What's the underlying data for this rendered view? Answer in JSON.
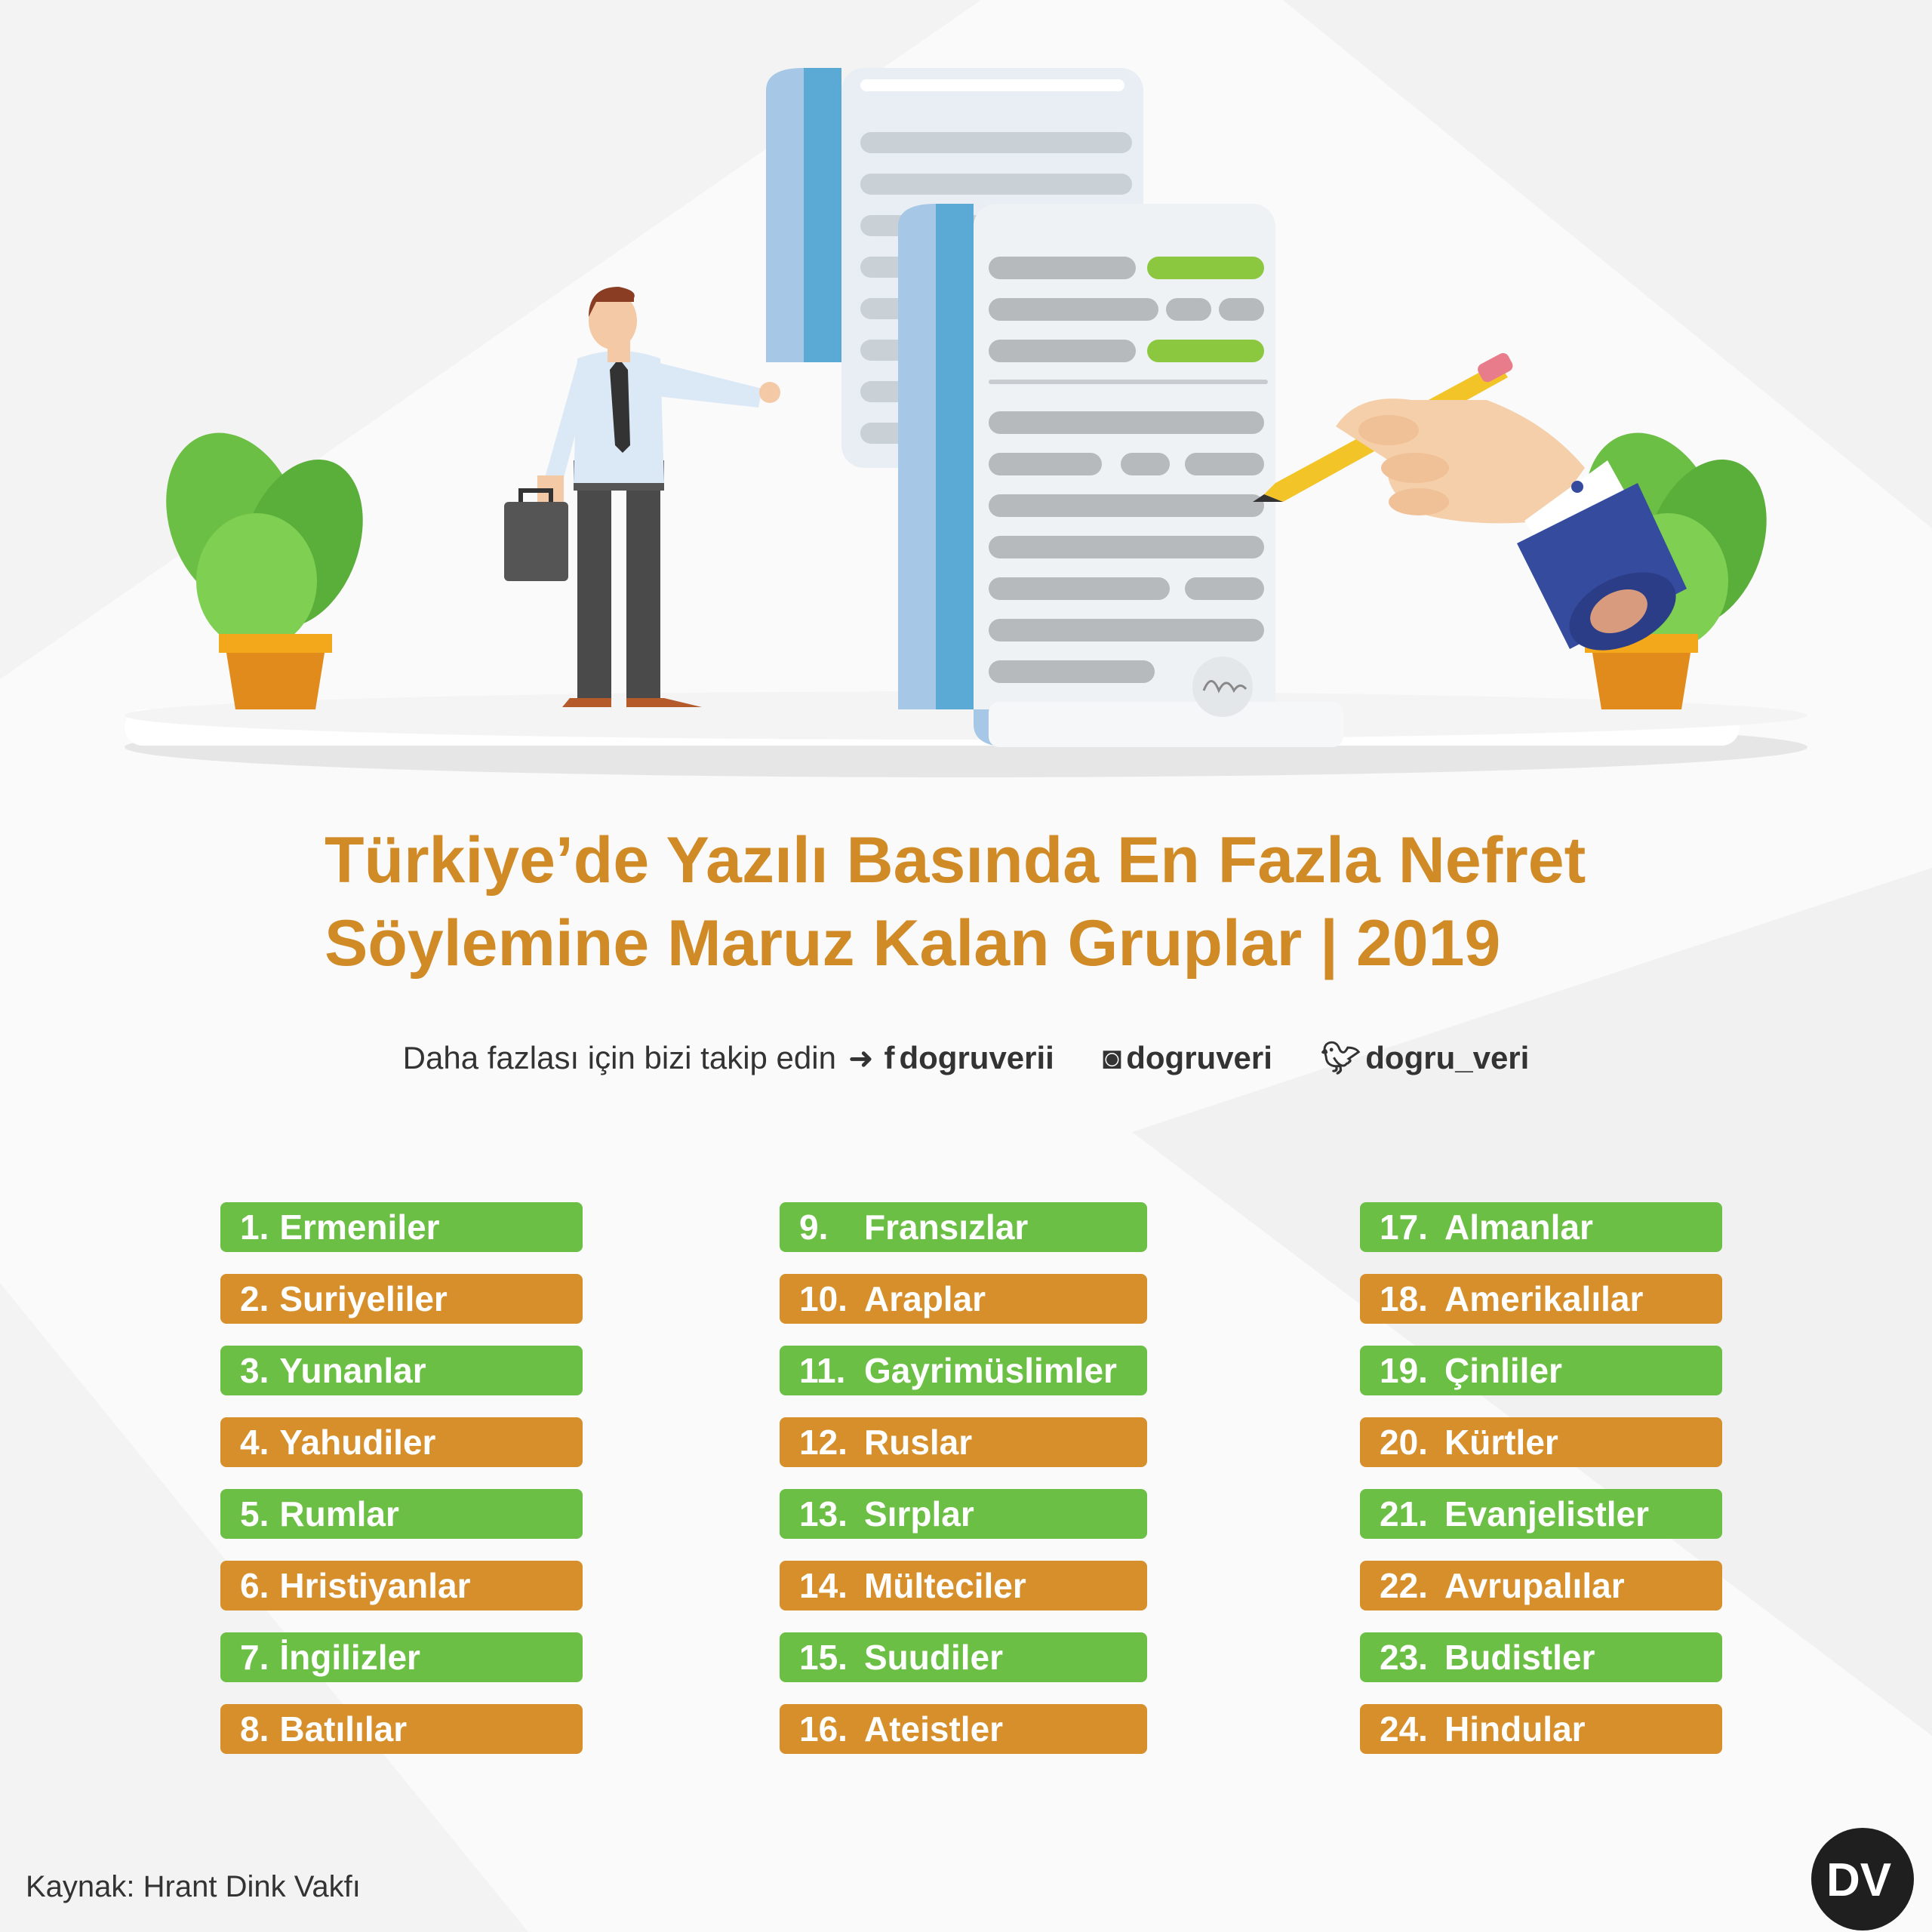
{
  "title": {
    "line1": "Türkiye’de Yazılı Basında En Fazla Nefret",
    "line2": "Söylemine Maruz Kalan Gruplar | 2019"
  },
  "follow": {
    "text": "Daha fazlası için bizi takip edin",
    "arrow_icon": "arrow-right-icon",
    "facebook_icon": "facebook-icon",
    "facebook_handle": "dogruverii",
    "instagram_icon": "instagram-icon",
    "instagram_handle": "dogruveri",
    "twitter_icon": "twitter-icon",
    "twitter_handle": "dogru_veri"
  },
  "colors": {
    "green": "#6cbf45",
    "orange": "#d68f2b",
    "title": "#d08a26"
  },
  "groups": [
    {
      "num": "1.",
      "label": "Ermeniler",
      "color": "green"
    },
    {
      "num": "2.",
      "label": "Suriyeliler",
      "color": "orange"
    },
    {
      "num": "3.",
      "label": "Yunanlar",
      "color": "green"
    },
    {
      "num": "4.",
      "label": "Yahudiler",
      "color": "orange"
    },
    {
      "num": "5.",
      "label": "Rumlar",
      "color": "green"
    },
    {
      "num": "6.",
      "label": "Hristiyanlar",
      "color": "orange"
    },
    {
      "num": "7.",
      "label": "İngilizler",
      "color": "green"
    },
    {
      "num": "8.",
      "label": "Batılılar",
      "color": "orange"
    },
    {
      "num": "9.",
      "label": "Fransızlar",
      "color": "green"
    },
    {
      "num": "10.",
      "label": "Araplar",
      "color": "orange"
    },
    {
      "num": "11.",
      "label": "Gayrimüslimler",
      "color": "green"
    },
    {
      "num": "12.",
      "label": "Ruslar",
      "color": "orange"
    },
    {
      "num": "13.",
      "label": "Sırplar",
      "color": "green"
    },
    {
      "num": "14.",
      "label": "Mülteciler",
      "color": "orange"
    },
    {
      "num": "15.",
      "label": "Suudiler",
      "color": "green"
    },
    {
      "num": "16.",
      "label": "Ateistler",
      "color": "orange"
    },
    {
      "num": "17.",
      "label": "Almanlar",
      "color": "green"
    },
    {
      "num": "18.",
      "label": "Amerikalılar",
      "color": "orange"
    },
    {
      "num": "19.",
      "label": "Çinliler",
      "color": "green"
    },
    {
      "num": "20.",
      "label": "Kürtler",
      "color": "orange"
    },
    {
      "num": "21.",
      "label": "Evanjelistler",
      "color": "green"
    },
    {
      "num": "22.",
      "label": "Avrupalılar",
      "color": "orange"
    },
    {
      "num": "23.",
      "label": "Budistler",
      "color": "green"
    },
    {
      "num": "24.",
      "label": "Hindular",
      "color": "orange"
    }
  ],
  "source": "Kaynak: Hrant Dink Vakfı",
  "logo": {
    "text": "DV",
    "icon": "dv-logo-icon"
  }
}
